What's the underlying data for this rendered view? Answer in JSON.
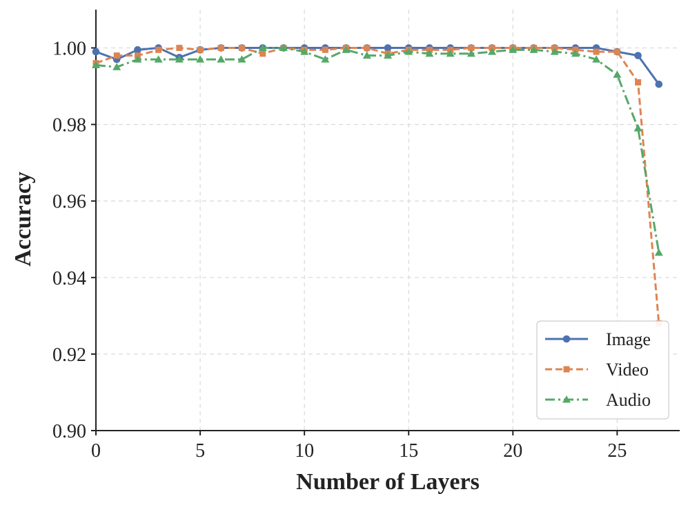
{
  "chart_data": {
    "type": "line",
    "title": "",
    "xlabel": "Number of Layers",
    "ylabel": "Accuracy",
    "xlim": [
      0,
      28
    ],
    "ylim": [
      0.9,
      1.01
    ],
    "xticks": [
      0,
      5,
      10,
      15,
      20,
      25
    ],
    "yticks": [
      0.9,
      0.92,
      0.94,
      0.96,
      0.98,
      1.0
    ],
    "xtick_labels": [
      "0",
      "5",
      "10",
      "15",
      "20",
      "25"
    ],
    "ytick_labels": [
      "0.90",
      "0.92",
      "0.94",
      "0.96",
      "0.98",
      "1.00"
    ],
    "grid": true,
    "legend_position": "bottom-right",
    "x": [
      0,
      1,
      2,
      3,
      4,
      5,
      6,
      7,
      8,
      9,
      10,
      11,
      12,
      13,
      14,
      15,
      16,
      17,
      18,
      19,
      20,
      21,
      22,
      23,
      24,
      25,
      26,
      27
    ],
    "series": [
      {
        "name": "Image",
        "color": "#4c72b0",
        "line_style": "solid",
        "marker": "circle",
        "values": [
          0.999,
          0.997,
          0.9995,
          1.0,
          0.9975,
          0.9995,
          1.0,
          1.0,
          1.0,
          1.0,
          1.0,
          1.0,
          1.0,
          1.0,
          1.0,
          1.0,
          1.0,
          1.0,
          1.0,
          1.0,
          1.0,
          1.0,
          1.0,
          1.0,
          1.0,
          0.999,
          0.998,
          0.9905
        ]
      },
      {
        "name": "Video",
        "color": "#dd8452",
        "line_style": "dashed",
        "marker": "square",
        "values": [
          0.996,
          0.998,
          0.998,
          0.9995,
          1.0,
          0.9995,
          1.0,
          1.0,
          0.9985,
          1.0,
          0.9995,
          0.9995,
          1.0,
          1.0,
          0.9985,
          0.9995,
          0.9995,
          0.9995,
          1.0,
          1.0,
          1.0,
          1.0,
          1.0,
          0.9995,
          0.999,
          0.999,
          0.991,
          0.928
        ]
      },
      {
        "name": "Audio",
        "color": "#55a868",
        "line_style": "dashdot",
        "marker": "triangle",
        "values": [
          0.9955,
          0.995,
          0.997,
          0.997,
          0.997,
          0.997,
          0.997,
          0.997,
          1.0,
          1.0,
          0.999,
          0.997,
          0.9995,
          0.998,
          0.998,
          0.999,
          0.9985,
          0.9985,
          0.9985,
          0.999,
          0.9995,
          0.9995,
          0.999,
          0.9985,
          0.997,
          0.993,
          0.979,
          0.9465
        ]
      }
    ]
  }
}
